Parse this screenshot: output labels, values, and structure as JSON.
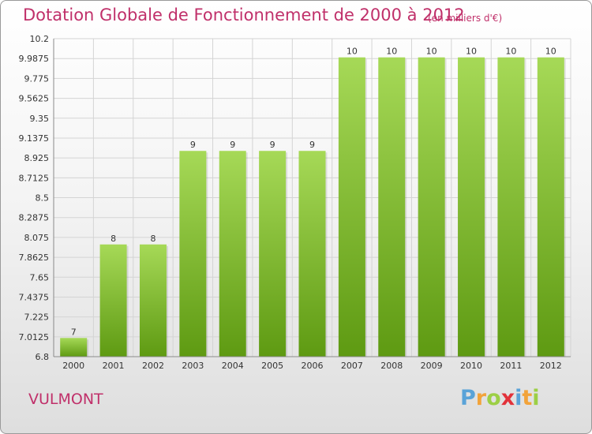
{
  "header": {
    "title": "Dotation Globale de Fonctionnement de 2000 à 2012",
    "unit": "(en milliers d'€)"
  },
  "footer": {
    "commune": "VULMONT",
    "logo_letters": [
      "P",
      "r",
      "o",
      "x",
      "i",
      "t",
      "i"
    ],
    "logo_colors": [
      "#5aa3d8",
      "#f2a33a",
      "#9ccf45",
      "#e2323a",
      "#5aa3d8",
      "#f2a33a",
      "#9ccf45"
    ]
  },
  "colors": {
    "title": "#c0306a",
    "bar_light": "#a6d957",
    "bar_dark": "#5e9a12",
    "grid": "#d4d4d4",
    "axis": "#8a8a8a"
  },
  "chart_data": {
    "type": "bar",
    "title": "Dotation Globale de Fonctionnement de 2000 à 2012",
    "xlabel": "",
    "ylabel": "",
    "categories": [
      "2000",
      "2001",
      "2002",
      "2003",
      "2004",
      "2005",
      "2006",
      "2007",
      "2008",
      "2009",
      "2010",
      "2011",
      "2012"
    ],
    "values": [
      7,
      8,
      8,
      9,
      9,
      9,
      9,
      10,
      10,
      10,
      10,
      10,
      10
    ],
    "data_labels": [
      "7",
      "8",
      "8",
      "9",
      "9",
      "9",
      "9",
      "10",
      "10",
      "10",
      "10",
      "10",
      "10"
    ],
    "ylim": [
      6.8,
      10.2
    ],
    "yticks": [
      "6.8",
      "7.0125",
      "7.225",
      "7.4375",
      "7.65",
      "7.8625",
      "8.075",
      "8.2875",
      "8.5",
      "8.7125",
      "8.925",
      "9.1375",
      "9.35",
      "9.5625",
      "9.775",
      "9.9875",
      "10.2"
    ],
    "grid": true,
    "legend": "none"
  }
}
